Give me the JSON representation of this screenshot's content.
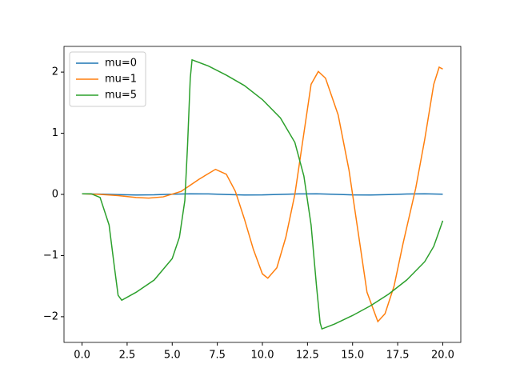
{
  "chart_data": {
    "type": "line",
    "xlim": [
      -1,
      21
    ],
    "xticks": [
      {
        "value": 0,
        "label": "0.0"
      },
      {
        "value": 2.5,
        "label": "2.5"
      },
      {
        "value": 5,
        "label": "5.0"
      },
      {
        "value": 7.5,
        "label": "7.5"
      },
      {
        "value": 10,
        "label": "10.0"
      },
      {
        "value": 12.5,
        "label": "12.5"
      },
      {
        "value": 15,
        "label": "15.0"
      },
      {
        "value": 17.5,
        "label": "17.5"
      },
      {
        "value": 20,
        "label": "20.0"
      }
    ],
    "ylim": [
      -2.42,
      2.42
    ],
    "yticks": [
      {
        "value": -2,
        "label": "−2"
      },
      {
        "value": -1,
        "label": "−1"
      },
      0,
      1,
      2
    ],
    "legend": "upper left",
    "series": [
      {
        "name": "mu=0",
        "color": "#1f77b4",
        "x": [
          0,
          1,
          2,
          3,
          4,
          5,
          6,
          7,
          8,
          9,
          10,
          11,
          12,
          13,
          14,
          15,
          16,
          17,
          18,
          19,
          20
        ],
        "values": [
          0.01,
          0.005,
          -0.004,
          -0.01,
          -0.007,
          0.003,
          0.01,
          0.008,
          -0.001,
          -0.009,
          -0.008,
          0.0,
          0.008,
          0.009,
          0.001,
          -0.008,
          -0.01,
          -0.003,
          0.007,
          0.01,
          0.004
        ]
      },
      {
        "name": "mu=1",
        "color": "#ff7f0e",
        "x": [
          0,
          1,
          2,
          3,
          3.7,
          4.5,
          5.5,
          6.5,
          7.4,
          8,
          8.5,
          9,
          9.5,
          10,
          10.3,
          10.8,
          11.3,
          11.8,
          12.3,
          12.7,
          13.1,
          13.5,
          14.2,
          14.8,
          15.3,
          15.8,
          16.4,
          16.8,
          17.3,
          17.8,
          18.5,
          19,
          19.5,
          19.8,
          20
        ],
        "values": [
          0.01,
          0.0,
          -0.02,
          -0.05,
          -0.06,
          -0.04,
          0.05,
          0.25,
          0.41,
          0.33,
          0.05,
          -0.4,
          -0.9,
          -1.3,
          -1.37,
          -1.2,
          -0.7,
          0.0,
          1.0,
          1.8,
          2.01,
          1.9,
          1.3,
          0.4,
          -0.6,
          -1.6,
          -2.08,
          -1.95,
          -1.5,
          -0.8,
          0.1,
          0.9,
          1.8,
          2.08,
          2.05
        ]
      },
      {
        "name": "mu=5",
        "color": "#2ca02c",
        "x": [
          0,
          0.5,
          1,
          1.5,
          1.8,
          2,
          2.2,
          3,
          4,
          5,
          5.4,
          5.7,
          5.85,
          6,
          6.1,
          7,
          8,
          9,
          10,
          11,
          11.8,
          12.3,
          12.7,
          13,
          13.2,
          13.3,
          14,
          15,
          16,
          17,
          18,
          19,
          19.5,
          19.8,
          20
        ],
        "values": [
          0.01,
          0.01,
          -0.05,
          -0.5,
          -1.2,
          -1.65,
          -1.73,
          -1.6,
          -1.4,
          -1.05,
          -0.7,
          -0.1,
          0.8,
          1.9,
          2.2,
          2.1,
          1.95,
          1.78,
          1.55,
          1.25,
          0.85,
          0.3,
          -0.5,
          -1.5,
          -2.1,
          -2.2,
          -2.12,
          -1.98,
          -1.82,
          -1.63,
          -1.4,
          -1.1,
          -0.85,
          -0.6,
          -0.43
        ]
      }
    ]
  }
}
